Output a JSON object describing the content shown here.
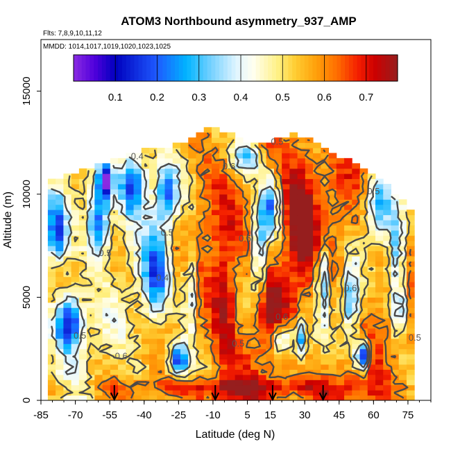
{
  "chart_data": {
    "type": "heatmap",
    "title": "ATOM3 Northbound asymmetry_937_AMP",
    "subtitle_flights": "Flts: 7,8,9,10,11,12",
    "subtitle_dates": "MMDD: 1014,1017,1019,1020,1023,1025",
    "xlabel": "Latitude (deg N)",
    "ylabel": "Altitude (m)",
    "xlim": [
      -85,
      85
    ],
    "ylim": [
      0,
      17500
    ],
    "x_ticks": [
      -85,
      -70,
      -55,
      -40,
      -25,
      -10,
      5,
      15,
      30,
      45,
      60,
      75
    ],
    "x_tick_labels": [
      "-85",
      "-70",
      "-55",
      "-40",
      "-25",
      "-10",
      "5",
      "15",
      "30",
      "45",
      "60",
      "75"
    ],
    "y_ticks": [
      0,
      5000,
      10000,
      15000
    ],
    "y_tick_labels": [
      "0",
      "5000",
      "10000",
      "15000"
    ],
    "colorbar": {
      "range": [
        0.0,
        0.775
      ],
      "ticks": [
        0.1,
        0.2,
        0.3,
        0.4,
        0.5,
        0.6,
        0.7
      ],
      "tick_labels": [
        "0.1",
        "0.2",
        "0.3",
        "0.4",
        "0.5",
        "0.6",
        "0.7"
      ]
    },
    "contour_labels": [
      {
        "text": "0.4",
        "lat": -43,
        "alt": 11700
      },
      {
        "text": "0.5",
        "lat": -57,
        "alt": 7000
      },
      {
        "text": "0.5",
        "lat": -30,
        "alt": 8000
      },
      {
        "text": "0.4",
        "lat": -32,
        "alt": 5800
      },
      {
        "text": "0.6",
        "lat": -3,
        "alt": 11200
      },
      {
        "text": "0.5",
        "lat": 18,
        "alt": 12400
      },
      {
        "text": "0.5",
        "lat": -68,
        "alt": 3000
      },
      {
        "text": "0.6",
        "lat": -50,
        "alt": 2000
      },
      {
        "text": "0.5",
        "lat": 1,
        "alt": 2600
      },
      {
        "text": "0.6",
        "lat": 20,
        "alt": 3900
      },
      {
        "text": "0.5",
        "lat": 4,
        "alt": 7700
      },
      {
        "text": "0.5",
        "lat": 60,
        "alt": 10000
      },
      {
        "text": "0.5",
        "lat": 78,
        "alt": 2900
      },
      {
        "text": "0.6",
        "lat": 50,
        "alt": 5300
      }
    ],
    "arrow_latitudes": [
      -53,
      -9,
      16,
      38
    ],
    "field_lat_range": [
      -82,
      77
    ],
    "top_profile": [
      {
        "lat": -82,
        "alt": 10600
      },
      {
        "lat": -72,
        "alt": 11000
      },
      {
        "lat": -62,
        "alt": 11400
      },
      {
        "lat": -52,
        "alt": 11800
      },
      {
        "lat": -42,
        "alt": 12100
      },
      {
        "lat": -32,
        "alt": 12300
      },
      {
        "lat": -22,
        "alt": 12500
      },
      {
        "lat": -15,
        "alt": 13000
      },
      {
        "lat": -10,
        "alt": 13400
      },
      {
        "lat": -5,
        "alt": 13000
      },
      {
        "lat": 5,
        "alt": 12600
      },
      {
        "lat": 15,
        "alt": 12600
      },
      {
        "lat": 25,
        "alt": 12900
      },
      {
        "lat": 35,
        "alt": 12600
      },
      {
        "lat": 45,
        "alt": 11900
      },
      {
        "lat": 55,
        "alt": 11200
      },
      {
        "lat": 65,
        "alt": 10600
      },
      {
        "lat": 72,
        "alt": 9800
      },
      {
        "lat": 77,
        "alt": 9000
      }
    ],
    "low_zones": [
      {
        "lat": -73,
        "alt": 3800,
        "slat": 6,
        "salt": 1400,
        "w": 0.45
      },
      {
        "lat": -78,
        "alt": 8200,
        "slat": 4,
        "salt": 1500,
        "w": 0.35
      },
      {
        "lat": -60,
        "alt": 8600,
        "slat": 5,
        "salt": 1500,
        "w": 0.4
      },
      {
        "lat": -57,
        "alt": 10600,
        "slat": 3,
        "salt": 800,
        "w": 0.5
      },
      {
        "lat": -45,
        "alt": 10500,
        "slat": 6,
        "salt": 1500,
        "w": 0.4
      },
      {
        "lat": -35,
        "alt": 6000,
        "slat": 6,
        "salt": 2200,
        "w": 0.3
      },
      {
        "lat": -25,
        "alt": 2000,
        "slat": 4,
        "salt": 800,
        "w": 0.4
      },
      {
        "lat": -30,
        "alt": 10000,
        "slat": 5,
        "salt": 1500,
        "w": 0.3
      },
      {
        "lat": -20,
        "alt": 5500,
        "slat": 3,
        "salt": 2000,
        "w": 0.25
      },
      {
        "lat": 5,
        "alt": 11800,
        "slat": 7,
        "salt": 1000,
        "w": 0.3
      },
      {
        "lat": 10,
        "alt": 7000,
        "slat": 3,
        "salt": 2500,
        "w": 0.25
      },
      {
        "lat": 15,
        "alt": 9500,
        "slat": 4,
        "salt": 1500,
        "w": 0.3
      },
      {
        "lat": 20,
        "alt": 3000,
        "slat": 4,
        "salt": 800,
        "w": 0.3
      },
      {
        "lat": 28,
        "alt": 3000,
        "slat": 3,
        "salt": 1000,
        "w": 0.35
      },
      {
        "lat": 38,
        "alt": 5800,
        "slat": 3,
        "salt": 2000,
        "w": 0.3
      },
      {
        "lat": 50,
        "alt": 4800,
        "slat": 4,
        "salt": 1800,
        "w": 0.3
      },
      {
        "lat": 55,
        "alt": 2200,
        "slat": 3,
        "salt": 700,
        "w": 0.55
      },
      {
        "lat": 62,
        "alt": 9500,
        "slat": 6,
        "salt": 1800,
        "w": 0.3
      },
      {
        "lat": 70,
        "alt": 7000,
        "slat": 4,
        "salt": 2000,
        "w": 0.3
      },
      {
        "lat": 72,
        "alt": 4500,
        "slat": 4,
        "salt": 1200,
        "w": 0.25
      }
    ],
    "high_zones": [
      {
        "lat": -5,
        "alt": 5000,
        "slat": 5,
        "salt": 3000,
        "w": 0.2
      },
      {
        "lat": 28,
        "alt": 9000,
        "slat": 7,
        "salt": 3000,
        "w": 0.25
      },
      {
        "lat": 15,
        "alt": 4500,
        "slat": 6,
        "salt": 1800,
        "w": 0.15
      },
      {
        "lat": 0,
        "alt": 600,
        "slat": 60,
        "salt": 500,
        "w": 0.15
      }
    ]
  }
}
